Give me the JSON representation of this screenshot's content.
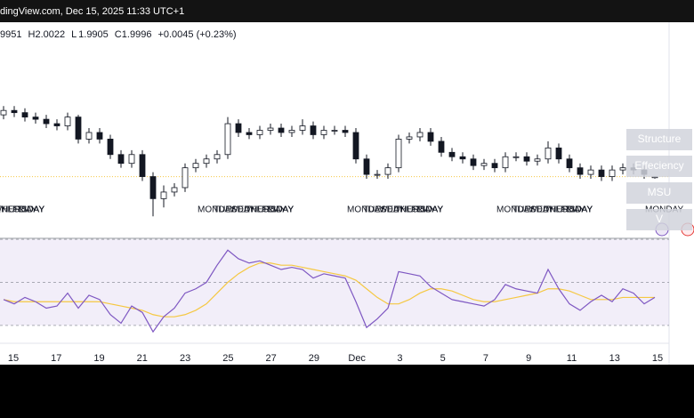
{
  "header": {
    "source": "dingView.com, Dec 15, 2025 11:33 UTC+1",
    "ohlc": [
      {
        "key": "",
        "text": "9951"
      },
      {
        "key": "H",
        "text": "2.0022"
      },
      {
        "key": "L",
        "text": "1.9905"
      },
      {
        "key": "C",
        "text": "1.9996"
      },
      {
        "key": "",
        "text": "+0.0045 (+0.23%)"
      }
    ]
  },
  "side_buttons": [
    "Structure",
    "Effeciency",
    "MSU",
    "V"
  ],
  "day_labels": [
    "MONDAY",
    "TUESDAY",
    "WEDNESDAY",
    "THURSDAY",
    "FRIDAY"
  ],
  "x_labels": [
    "15",
    "17",
    "19",
    "21",
    "23",
    "25",
    "27",
    "29",
    "Dec",
    "3",
    "5",
    "7",
    "9",
    "11",
    "13",
    "15"
  ],
  "chart_data": {
    "type": "candlestick",
    "ylim": [
      1.72,
      2.7
    ],
    "open": [
      2.28,
      2.3,
      2.29,
      2.27,
      2.26,
      2.24,
      2.23,
      2.27,
      2.17,
      2.2,
      2.17,
      2.1,
      2.06,
      2.1,
      2.0,
      1.9,
      1.93,
      1.95,
      2.04,
      2.06,
      2.08,
      2.1,
      2.24,
      2.2,
      2.19,
      2.21,
      2.22,
      2.2,
      2.21,
      2.23,
      2.19,
      2.21,
      2.21,
      2.2,
      2.08,
      2.01,
      2.01,
      2.04,
      2.17,
      2.18,
      2.2,
      2.16,
      2.11,
      2.09,
      2.08,
      2.05,
      2.06,
      2.04,
      2.09,
      2.09,
      2.07,
      2.08,
      2.13,
      2.08,
      2.04,
      2.01,
      2.03,
      2.0,
      2.03,
      2.04,
      2.03,
      1.9951
    ],
    "high": [
      2.32,
      2.32,
      2.31,
      2.29,
      2.28,
      2.26,
      2.29,
      2.28,
      2.22,
      2.22,
      2.19,
      2.12,
      2.12,
      2.12,
      2.02,
      1.96,
      1.97,
      2.06,
      2.08,
      2.1,
      2.12,
      2.27,
      2.26,
      2.22,
      2.23,
      2.24,
      2.24,
      2.23,
      2.26,
      2.25,
      2.23,
      2.23,
      2.23,
      2.22,
      2.1,
      2.03,
      2.06,
      2.19,
      2.2,
      2.22,
      2.22,
      2.18,
      2.13,
      2.11,
      2.1,
      2.08,
      2.08,
      2.11,
      2.11,
      2.11,
      2.1,
      2.16,
      2.15,
      2.1,
      2.06,
      2.05,
      2.05,
      2.05,
      2.06,
      2.06,
      2.05,
      2.0022
    ],
    "low": [
      2.26,
      2.27,
      2.25,
      2.24,
      2.22,
      2.21,
      2.21,
      2.15,
      2.15,
      2.15,
      2.08,
      2.04,
      2.04,
      1.98,
      1.82,
      1.86,
      1.91,
      1.93,
      2.02,
      2.04,
      2.06,
      2.08,
      2.18,
      2.17,
      2.17,
      2.19,
      2.18,
      2.18,
      2.19,
      2.17,
      2.17,
      2.19,
      2.18,
      2.06,
      1.99,
      1.99,
      1.99,
      2.02,
      2.15,
      2.16,
      2.14,
      2.09,
      2.07,
      2.06,
      2.03,
      2.03,
      2.02,
      2.02,
      2.07,
      2.05,
      2.05,
      2.06,
      2.06,
      2.02,
      1.99,
      1.99,
      1.98,
      1.98,
      2.01,
      2.01,
      1.99,
      1.9905
    ],
    "close": [
      2.3,
      2.29,
      2.27,
      2.26,
      2.24,
      2.23,
      2.27,
      2.17,
      2.2,
      2.17,
      2.1,
      2.06,
      2.1,
      2.0,
      1.9,
      1.93,
      1.95,
      2.04,
      2.06,
      2.08,
      2.1,
      2.24,
      2.2,
      2.19,
      2.21,
      2.22,
      2.2,
      2.21,
      2.23,
      2.19,
      2.21,
      2.21,
      2.2,
      2.08,
      2.01,
      2.01,
      2.04,
      2.17,
      2.18,
      2.2,
      2.16,
      2.11,
      2.09,
      2.08,
      2.05,
      2.06,
      2.04,
      2.09,
      2.09,
      2.07,
      2.08,
      2.13,
      2.08,
      2.04,
      2.01,
      2.03,
      2.0,
      2.03,
      2.04,
      2.03,
      2.01,
      1.9996
    ],
    "rsi": {
      "ylim": [
        20,
        80
      ],
      "levels": [
        70,
        50,
        30
      ],
      "line_color": "#7e57c2",
      "ma_color": "#f5c842",
      "values": [
        42,
        40,
        43,
        41,
        38,
        39,
        45,
        38,
        44,
        42,
        35,
        31,
        39,
        36,
        27,
        34,
        38,
        45,
        47,
        50,
        58,
        65,
        61,
        59,
        60,
        58,
        56,
        57,
        56,
        52,
        54,
        53,
        52,
        41,
        29,
        33,
        38,
        55,
        54,
        53,
        48,
        45,
        42,
        41,
        40,
        39,
        42,
        49,
        47,
        46,
        45,
        56,
        47,
        40,
        37,
        41,
        44,
        41,
        47,
        45,
        40,
        43
      ],
      "ma": [
        42,
        41,
        41,
        41,
        41,
        41,
        41,
        41,
        41,
        41,
        40,
        39,
        38,
        37,
        35,
        34,
        34,
        35,
        37,
        40,
        45,
        50,
        54,
        57,
        59,
        59,
        58,
        58,
        57,
        56,
        55,
        54,
        53,
        51,
        47,
        43,
        40,
        40,
        42,
        45,
        47,
        47,
        46,
        44,
        42,
        41,
        41,
        42,
        43,
        44,
        45,
        47,
        47,
        46,
        44,
        42,
        42,
        42,
        43,
        43,
        43,
        43
      ]
    }
  }
}
